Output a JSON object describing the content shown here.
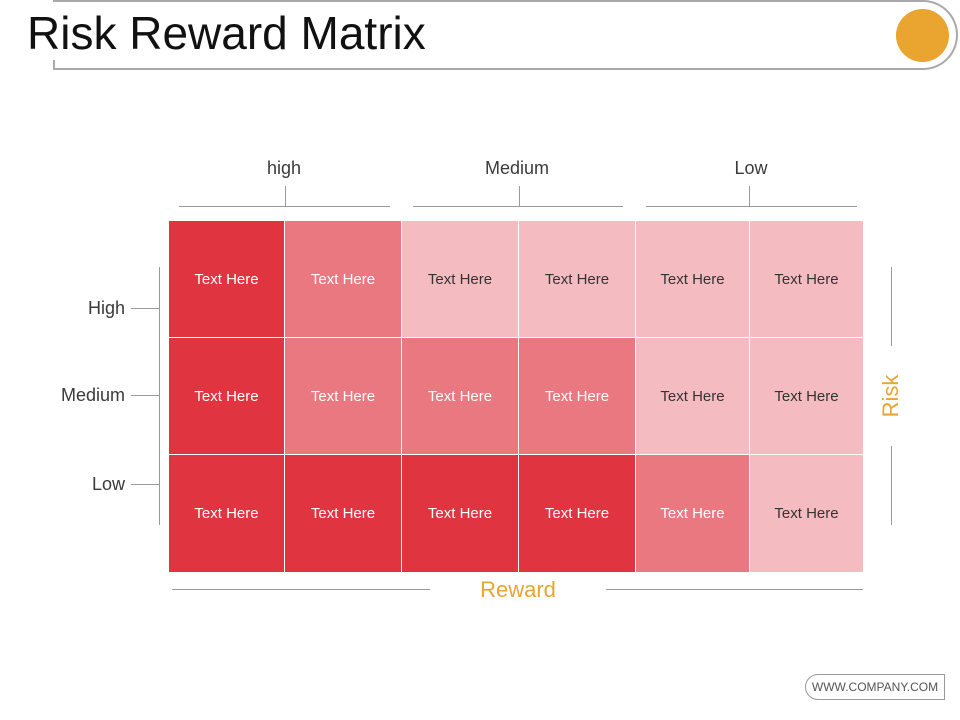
{
  "title": "Risk Reward Matrix",
  "colors": {
    "accent": "#e9a52f",
    "dark": "#e03440",
    "mid": "#ea7880",
    "light": "#f4bcc0"
  },
  "columns": [
    "high",
    "Medium",
    "Low"
  ],
  "rows": [
    "High",
    "Medium",
    "Low"
  ],
  "axis": {
    "vertical": "Risk",
    "horizontal": "Reward"
  },
  "cells": [
    [
      {
        "text": "Text Here",
        "level": "dark"
      },
      {
        "text": "Text Here",
        "level": "mid"
      },
      {
        "text": "Text Here",
        "level": "light"
      },
      {
        "text": "Text Here",
        "level": "light"
      },
      {
        "text": "Text Here",
        "level": "light"
      },
      {
        "text": "Text Here",
        "level": "light"
      }
    ],
    [
      {
        "text": "Text Here",
        "level": "dark"
      },
      {
        "text": "Text Here",
        "level": "mid"
      },
      {
        "text": "Text Here",
        "level": "mid"
      },
      {
        "text": "Text Here",
        "level": "mid"
      },
      {
        "text": "Text Here",
        "level": "light"
      },
      {
        "text": "Text Here",
        "level": "light"
      }
    ],
    [
      {
        "text": "Text Here",
        "level": "dark"
      },
      {
        "text": "Text Here",
        "level": "dark"
      },
      {
        "text": "Text Here",
        "level": "dark"
      },
      {
        "text": "Text Here",
        "level": "dark"
      },
      {
        "text": "Text Here",
        "level": "mid"
      },
      {
        "text": "Text Here",
        "level": "light"
      }
    ]
  ],
  "footer": "WWW.COMPANY.COM"
}
